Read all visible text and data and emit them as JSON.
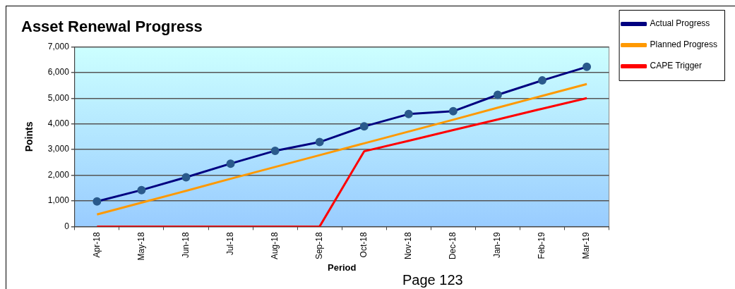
{
  "chart_data": {
    "type": "line",
    "title": "Asset Renewal Progress",
    "xlabel": "Period",
    "ylabel": "Points",
    "categories": [
      "Apr-18",
      "May-18",
      "Jun-18",
      "Jul-18",
      "Aug-18",
      "Sep-18",
      "Oct-18",
      "Nov-18",
      "Dec-18",
      "Jan-19",
      "Feb-19",
      "Mar-19"
    ],
    "series": [
      {
        "name": "Actual Progress",
        "color": "#000080",
        "marker": "circle",
        "values": [
          980,
          1420,
          1920,
          2450,
          2950,
          3290,
          3900,
          4380,
          4490,
          5130,
          5690,
          6220
        ]
      },
      {
        "name": "Planned Progress",
        "color": "#ff9900",
        "values": [
          470,
          930,
          1390,
          1860,
          2320,
          2780,
          3240,
          3700,
          4160,
          4630,
          5090,
          5550
        ]
      },
      {
        "name": "CAPE Trigger",
        "color": "#ff0000",
        "values": [
          0,
          0,
          0,
          0,
          0,
          0,
          2930,
          3340,
          3760,
          4170,
          4590,
          5000
        ]
      }
    ],
    "ylim": [
      0,
      7000
    ],
    "yticks": [
      0,
      {
        "value": 1000,
        "label": "1,000"
      },
      {
        "value": 2000,
        "label": "2,000"
      },
      {
        "value": 3000,
        "label": "3,000"
      },
      {
        "value": 4000,
        "label": "4,000"
      },
      {
        "value": 5000,
        "label": "5,000"
      },
      {
        "value": 6000,
        "label": "6,000"
      },
      {
        "value": 7000,
        "label": "7,000"
      }
    ],
    "grid": "y",
    "legend": "right",
    "annotations": [
      "Page 123"
    ]
  }
}
